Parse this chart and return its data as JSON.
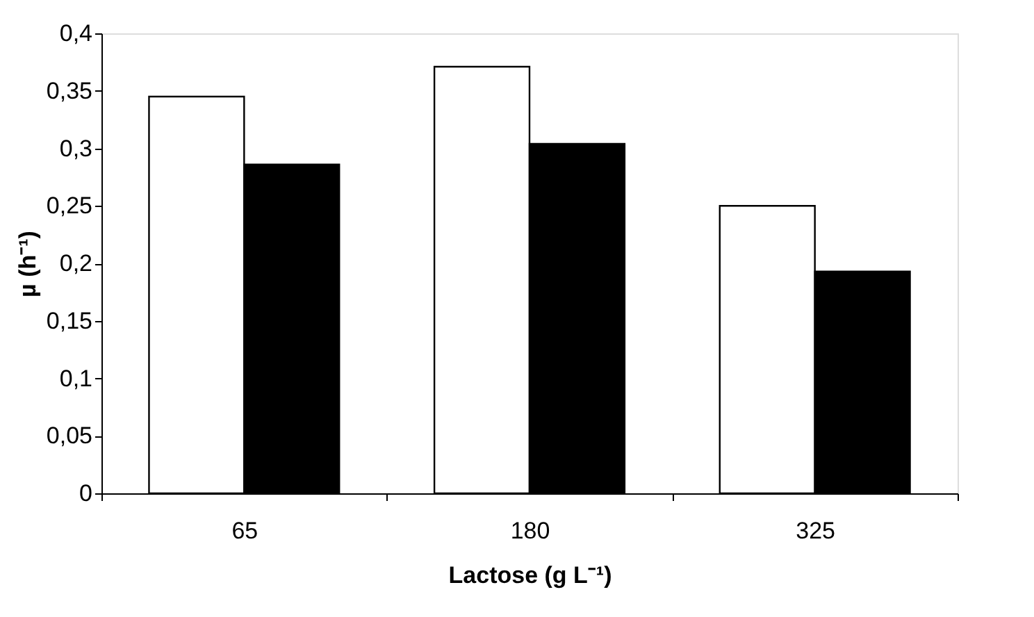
{
  "chart_data": {
    "type": "bar",
    "xlabel": "Lactose (g L⁻¹)",
    "ylabel": "µ (h⁻¹)",
    "categories": [
      "65",
      "180",
      "325"
    ],
    "series": [
      {
        "color": "#ffffff",
        "values": [
          0.345,
          0.371,
          0.25
        ]
      },
      {
        "color": "#000000",
        "values": [
          0.286,
          0.304,
          0.193
        ]
      }
    ],
    "ylim": [
      0,
      0.4
    ],
    "yticks": [
      0,
      {
        "value": 0.05,
        "label": "0,05"
      },
      {
        "value": 0.1,
        "label": "0,1"
      },
      {
        "value": 0.15,
        "label": "0,15"
      },
      {
        "value": 0.2,
        "label": "0,2"
      },
      {
        "value": 0.25,
        "label": "0,25"
      },
      {
        "value": 0.3,
        "label": "0,3"
      },
      {
        "value": 0.35,
        "label": "0,35"
      },
      {
        "value": 0.4,
        "label": "0,4"
      }
    ],
    "grid": false,
    "legend": false
  }
}
